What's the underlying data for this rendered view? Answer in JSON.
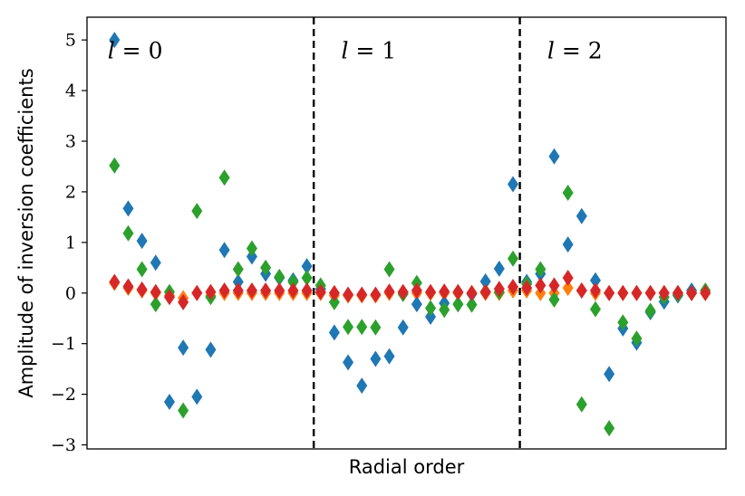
{
  "chart_data": {
    "type": "scatter",
    "title": "",
    "xlabel": "Radial order",
    "ylabel": "Amplitude of inversion coefficients",
    "ylim": [
      -3.08,
      5.45
    ],
    "xlim": [
      0,
      46.5
    ],
    "yticks": [
      -3,
      -2,
      -1,
      0,
      1,
      2,
      3,
      4,
      5
    ],
    "ytick_labels": [
      "−3",
      "−2",
      "−1",
      "0",
      "1",
      "2",
      "3",
      "4",
      "5"
    ],
    "xticks_shown": false,
    "grid": false,
    "marker": "diamond",
    "dividers_x": [
      16.5,
      31.5
    ],
    "regions": [
      {
        "label": "l = 0",
        "x": 1.5,
        "y": 4.8
      },
      {
        "label": "l = 1",
        "x": 18.5,
        "y": 4.8
      },
      {
        "label": "l = 2",
        "x": 33.5,
        "y": 4.8
      }
    ],
    "series": [
      {
        "color": "#ff7f0e",
        "points": [
          [
            2,
            0.2
          ],
          [
            3,
            0.1
          ],
          [
            4,
            0.05
          ],
          [
            5,
            0.0
          ],
          [
            6,
            -0.05
          ],
          [
            7,
            -0.1
          ],
          [
            8,
            0.0
          ],
          [
            9,
            -0.05
          ],
          [
            10,
            0.0
          ],
          [
            11,
            0.0
          ],
          [
            12,
            0.0
          ],
          [
            13,
            0.0
          ],
          [
            14,
            0.0
          ],
          [
            15,
            0.0
          ],
          [
            16,
            0.0
          ],
          [
            17,
            0.0
          ],
          [
            18,
            -0.05
          ],
          [
            19,
            -0.05
          ],
          [
            20,
            -0.05
          ],
          [
            21,
            -0.05
          ],
          [
            22,
            0.0
          ],
          [
            23,
            0.0
          ],
          [
            24,
            0.0
          ],
          [
            25,
            0.0
          ],
          [
            26,
            0.0
          ],
          [
            27,
            0.0
          ],
          [
            28,
            0.0
          ],
          [
            29,
            0.0
          ],
          [
            30,
            0.0
          ],
          [
            31,
            0.05
          ],
          [
            32,
            0.05
          ],
          [
            33,
            0.0
          ],
          [
            34,
            0.0
          ],
          [
            35,
            0.1
          ],
          [
            36,
            0.05
          ],
          [
            37,
            0.0
          ],
          [
            38,
            0.0
          ],
          [
            39,
            0.0
          ],
          [
            40,
            0.0
          ],
          [
            41,
            0.0
          ],
          [
            42,
            0.0
          ],
          [
            43,
            0.0
          ],
          [
            44,
            0.0
          ],
          [
            45,
            0.0
          ]
        ]
      },
      {
        "color": "#1f77b4",
        "points": [
          [
            2,
            5.0
          ],
          [
            3,
            1.67
          ],
          [
            4,
            1.03
          ],
          [
            5,
            0.6
          ],
          [
            6,
            -2.15
          ],
          [
            7,
            -1.08
          ],
          [
            8,
            -2.05
          ],
          [
            9,
            -1.12
          ],
          [
            10,
            0.85
          ],
          [
            11,
            0.22
          ],
          [
            12,
            0.72
          ],
          [
            13,
            0.38
          ],
          [
            14,
            0.3
          ],
          [
            15,
            0.25
          ],
          [
            16,
            0.53
          ],
          [
            17,
            0.08
          ],
          [
            18,
            -0.78
          ],
          [
            19,
            -1.37
          ],
          [
            20,
            -1.83
          ],
          [
            21,
            -1.3
          ],
          [
            22,
            -1.25
          ],
          [
            23,
            -0.68
          ],
          [
            24,
            -0.22
          ],
          [
            25,
            -0.47
          ],
          [
            26,
            -0.2
          ],
          [
            27,
            -0.22
          ],
          [
            28,
            -0.02
          ],
          [
            29,
            0.23
          ],
          [
            30,
            0.48
          ],
          [
            31,
            2.15
          ],
          [
            32,
            0.22
          ],
          [
            33,
            0.38
          ],
          [
            34,
            2.7
          ],
          [
            35,
            0.96
          ],
          [
            36,
            1.52
          ],
          [
            37,
            0.25
          ],
          [
            38,
            -1.6
          ],
          [
            39,
            -0.7
          ],
          [
            40,
            -0.98
          ],
          [
            41,
            -0.38
          ],
          [
            42,
            -0.17
          ],
          [
            43,
            -0.05
          ],
          [
            44,
            0.05
          ]
        ]
      },
      {
        "color": "#2ca02c",
        "points": [
          [
            2,
            2.52
          ],
          [
            3,
            1.18
          ],
          [
            4,
            0.47
          ],
          [
            5,
            -0.22
          ],
          [
            6,
            0.02
          ],
          [
            7,
            -2.32
          ],
          [
            8,
            1.62
          ],
          [
            9,
            -0.08
          ],
          [
            10,
            2.28
          ],
          [
            11,
            0.47
          ],
          [
            12,
            0.88
          ],
          [
            13,
            0.5
          ],
          [
            14,
            0.32
          ],
          [
            15,
            0.22
          ],
          [
            16,
            0.3
          ],
          [
            17,
            0.15
          ],
          [
            18,
            -0.18
          ],
          [
            19,
            -0.67
          ],
          [
            20,
            -0.67
          ],
          [
            21,
            -0.68
          ],
          [
            22,
            0.47
          ],
          [
            23,
            -0.02
          ],
          [
            24,
            0.2
          ],
          [
            25,
            -0.3
          ],
          [
            26,
            -0.33
          ],
          [
            27,
            -0.22
          ],
          [
            28,
            -0.23
          ],
          [
            29,
            0.03
          ],
          [
            30,
            0.02
          ],
          [
            31,
            0.68
          ],
          [
            32,
            0.18
          ],
          [
            33,
            0.47
          ],
          [
            34,
            -0.13
          ],
          [
            35,
            1.98
          ],
          [
            36,
            -2.2
          ],
          [
            37,
            -0.32
          ],
          [
            38,
            -2.67
          ],
          [
            39,
            -0.58
          ],
          [
            40,
            -0.9
          ],
          [
            41,
            -0.35
          ],
          [
            42,
            -0.08
          ],
          [
            43,
            -0.03
          ],
          [
            44,
            0.0
          ],
          [
            45,
            0.05
          ]
        ]
      },
      {
        "color": "#d62728",
        "points": [
          [
            2,
            0.22
          ],
          [
            3,
            0.13
          ],
          [
            4,
            0.07
          ],
          [
            5,
            0.02
          ],
          [
            6,
            -0.08
          ],
          [
            7,
            -0.18
          ],
          [
            8,
            0.0
          ],
          [
            9,
            0.02
          ],
          [
            10,
            0.05
          ],
          [
            11,
            0.05
          ],
          [
            12,
            0.05
          ],
          [
            13,
            0.05
          ],
          [
            14,
            0.05
          ],
          [
            15,
            0.05
          ],
          [
            16,
            0.05
          ],
          [
            17,
            0.02
          ],
          [
            18,
            0.0
          ],
          [
            19,
            -0.03
          ],
          [
            20,
            -0.03
          ],
          [
            21,
            -0.03
          ],
          [
            22,
            0.03
          ],
          [
            23,
            0.02
          ],
          [
            24,
            0.05
          ],
          [
            25,
            0.02
          ],
          [
            26,
            0.03
          ],
          [
            27,
            0.02
          ],
          [
            28,
            0.0
          ],
          [
            29,
            0.02
          ],
          [
            30,
            0.08
          ],
          [
            31,
            0.12
          ],
          [
            32,
            0.1
          ],
          [
            33,
            0.15
          ],
          [
            34,
            0.15
          ],
          [
            35,
            0.3
          ],
          [
            36,
            0.05
          ],
          [
            37,
            0.05
          ],
          [
            38,
            0.0
          ],
          [
            39,
            0.0
          ],
          [
            40,
            0.0
          ],
          [
            41,
            0.0
          ],
          [
            42,
            0.0
          ],
          [
            43,
            0.0
          ],
          [
            44,
            0.0
          ],
          [
            45,
            0.0
          ]
        ]
      }
    ]
  }
}
